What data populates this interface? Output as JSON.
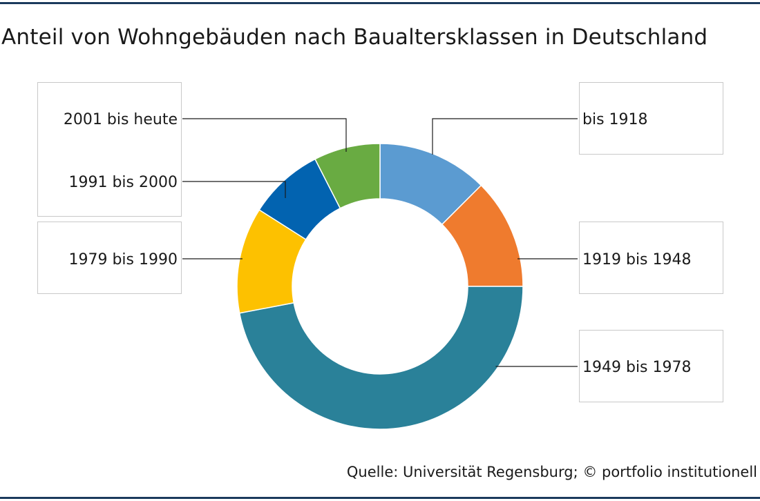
{
  "title": "Anteil von Wohngebäuden nach Baualtersklassen in Deutschland",
  "source": "Quelle: Universität Regensburg; © portfolio institutionell",
  "colors": {
    "rule": "#1b3a5c",
    "box_border": "#c8c8c8",
    "leader": "#1a1a1a"
  },
  "chart_data": {
    "type": "pie",
    "donut": true,
    "categories": [
      "bis 1918",
      "1919 bis 1948",
      "1949 bis 1978",
      "1979 bis 1990",
      "1991 bis 2000",
      "2001 bis heute"
    ],
    "values": [
      12.5,
      12.5,
      47.0,
      12.0,
      8.5,
      7.5
    ],
    "colors": [
      "#5b9bd1",
      "#ef7b2e",
      "#2a8199",
      "#fdc100",
      "#0263b0",
      "#69ab42"
    ]
  }
}
